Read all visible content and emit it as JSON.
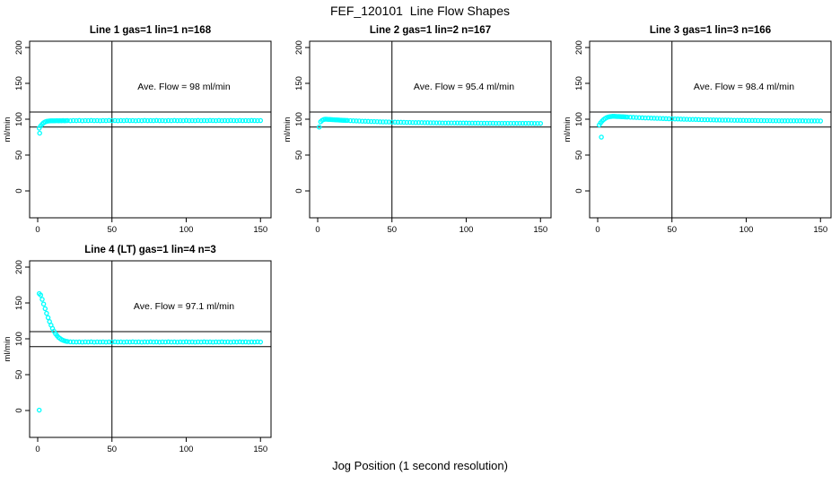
{
  "figure": {
    "title": "FEF_120101  Line Flow Shapes",
    "xlabel": "Jog Position (1 second resolution)",
    "background_color": "#ffffff",
    "point_color": "#00ffff",
    "axis_color": "#000000"
  },
  "chart_data": [
    {
      "type": "scatter",
      "name": "subplot-line-1",
      "title": "Line 1 gas=1 lin=1 n=168",
      "annotation": "Ave. Flow =  98  ml/min",
      "ylabel": "ml/min",
      "xticks": [
        0,
        50,
        100,
        150
      ],
      "yticks": [
        0,
        50,
        100,
        150,
        200
      ],
      "xlim": [
        -5,
        158
      ],
      "ylim": [
        -37,
        209
      ],
      "hlines": [
        110,
        89
      ],
      "vlines": [
        50
      ],
      "marker": "open-circle",
      "points": [
        [
          1,
          87.5
        ],
        [
          2,
          90.5
        ],
        [
          3,
          93.0
        ],
        [
          4,
          95.0
        ],
        [
          5,
          96.3
        ],
        [
          6,
          97.0
        ],
        [
          7,
          97.4
        ],
        [
          8,
          97.6
        ],
        [
          9,
          97.7
        ],
        [
          10,
          97.8
        ],
        [
          11,
          97.7
        ],
        [
          12,
          97.9
        ],
        [
          13,
          98.0
        ],
        [
          14,
          97.8
        ],
        [
          15,
          98.0
        ],
        [
          16,
          97.9
        ],
        [
          17,
          98.1
        ],
        [
          18,
          97.9
        ],
        [
          19,
          98.0
        ],
        [
          20,
          98.1
        ],
        [
          22,
          97.9
        ],
        [
          24,
          98.1
        ],
        [
          26,
          98.0
        ],
        [
          28,
          98.2
        ],
        [
          30,
          97.9
        ],
        [
          32,
          98.1
        ],
        [
          34,
          98.0
        ],
        [
          36,
          98.2
        ],
        [
          38,
          98.0
        ],
        [
          40,
          98.1
        ],
        [
          42,
          97.9
        ],
        [
          44,
          98.1
        ],
        [
          46,
          98.0
        ],
        [
          48,
          98.2
        ],
        [
          50,
          98.0
        ],
        [
          52,
          98.1
        ],
        [
          54,
          97.9
        ],
        [
          56,
          98.1
        ],
        [
          58,
          98.0
        ],
        [
          60,
          98.2
        ],
        [
          62,
          98.0
        ],
        [
          64,
          98.1
        ],
        [
          66,
          97.9
        ],
        [
          68,
          98.1
        ],
        [
          70,
          98.0
        ],
        [
          72,
          98.2
        ],
        [
          74,
          98.0
        ],
        [
          76,
          98.1
        ],
        [
          78,
          98.0
        ],
        [
          80,
          98.2
        ],
        [
          82,
          98.0
        ],
        [
          84,
          98.1
        ],
        [
          86,
          97.9
        ],
        [
          88,
          98.1
        ],
        [
          90,
          98.0
        ],
        [
          92,
          98.2
        ],
        [
          94,
          98.0
        ],
        [
          96,
          98.1
        ],
        [
          98,
          98.0
        ],
        [
          100,
          98.2
        ],
        [
          102,
          98.0
        ],
        [
          104,
          98.1
        ],
        [
          106,
          98.0
        ],
        [
          108,
          98.2
        ],
        [
          110,
          98.0
        ],
        [
          112,
          98.1
        ],
        [
          114,
          98.0
        ],
        [
          116,
          98.2
        ],
        [
          118,
          98.1
        ],
        [
          120,
          98.0
        ],
        [
          122,
          98.2
        ],
        [
          124,
          98.0
        ],
        [
          126,
          98.1
        ],
        [
          128,
          98.0
        ],
        [
          130,
          98.2
        ],
        [
          132,
          98.1
        ],
        [
          134,
          98.0
        ],
        [
          136,
          98.2
        ],
        [
          138,
          98.0
        ],
        [
          140,
          98.1
        ],
        [
          142,
          98.0
        ],
        [
          144,
          98.2
        ],
        [
          146,
          98.1
        ],
        [
          148,
          98.0
        ],
        [
          150,
          98.1
        ]
      ],
      "outliers": [
        [
          1.3,
          80.5
        ]
      ]
    },
    {
      "type": "scatter",
      "name": "subplot-line-2",
      "title": "Line 2 gas=1 lin=2 n=167",
      "annotation": "Ave. Flow =  95.4  ml/min",
      "ylabel": "ml/min",
      "xticks": [
        0,
        50,
        100,
        150
      ],
      "yticks": [
        0,
        50,
        100,
        150,
        200
      ],
      "xlim": [
        -5,
        158
      ],
      "ylim": [
        -37,
        209
      ],
      "hlines": [
        110,
        89
      ],
      "vlines": [
        50
      ],
      "marker": "open-circle",
      "points": [
        [
          1,
          89.0
        ],
        [
          2,
          96.5
        ],
        [
          3,
          98.5
        ],
        [
          4,
          99.5
        ],
        [
          5,
          100.0
        ],
        [
          6,
          100.0
        ],
        [
          7,
          99.8
        ],
        [
          8,
          99.7
        ],
        [
          9,
          99.5
        ],
        [
          10,
          99.4
        ],
        [
          11,
          99.2
        ],
        [
          12,
          99.1
        ],
        [
          13,
          99.0
        ],
        [
          14,
          98.9
        ],
        [
          15,
          98.7
        ],
        [
          16,
          98.6
        ],
        [
          17,
          98.5
        ],
        [
          18,
          98.4
        ],
        [
          19,
          98.3
        ],
        [
          20,
          98.2
        ],
        [
          22,
          98.0
        ],
        [
          24,
          97.8
        ],
        [
          26,
          97.6
        ],
        [
          28,
          97.5
        ],
        [
          30,
          97.3
        ],
        [
          32,
          97.1
        ],
        [
          34,
          97.0
        ],
        [
          36,
          96.8
        ],
        [
          38,
          96.7
        ],
        [
          40,
          96.6
        ],
        [
          42,
          96.4
        ],
        [
          44,
          96.3
        ],
        [
          46,
          96.2
        ],
        [
          48,
          96.1
        ],
        [
          50,
          96.0
        ],
        [
          52,
          95.9
        ],
        [
          54,
          95.8
        ],
        [
          56,
          95.7
        ],
        [
          58,
          95.6
        ],
        [
          60,
          95.5
        ],
        [
          62,
          95.5
        ],
        [
          64,
          95.4
        ],
        [
          66,
          95.3
        ],
        [
          68,
          95.3
        ],
        [
          70,
          95.2
        ],
        [
          72,
          95.1
        ],
        [
          74,
          95.1
        ],
        [
          76,
          95.0
        ],
        [
          78,
          95.0
        ],
        [
          80,
          94.9
        ],
        [
          82,
          94.9
        ],
        [
          84,
          94.8
        ],
        [
          86,
          94.8
        ],
        [
          88,
          94.8
        ],
        [
          90,
          94.7
        ],
        [
          92,
          94.7
        ],
        [
          94,
          94.7
        ],
        [
          96,
          94.6
        ],
        [
          98,
          94.6
        ],
        [
          100,
          94.6
        ],
        [
          102,
          94.5
        ],
        [
          104,
          94.5
        ],
        [
          106,
          94.5
        ],
        [
          108,
          94.5
        ],
        [
          110,
          94.4
        ],
        [
          112,
          94.4
        ],
        [
          114,
          94.4
        ],
        [
          116,
          94.4
        ],
        [
          118,
          94.4
        ],
        [
          120,
          94.3
        ],
        [
          122,
          94.3
        ],
        [
          124,
          94.3
        ],
        [
          126,
          94.3
        ],
        [
          128,
          94.3
        ],
        [
          130,
          94.3
        ],
        [
          132,
          94.2
        ],
        [
          134,
          94.2
        ],
        [
          136,
          94.2
        ],
        [
          138,
          94.2
        ],
        [
          140,
          94.2
        ],
        [
          142,
          94.2
        ],
        [
          144,
          94.2
        ],
        [
          146,
          94.1
        ],
        [
          148,
          94.1
        ],
        [
          150,
          94.1
        ]
      ],
      "outliers": []
    },
    {
      "type": "scatter",
      "name": "subplot-line-3",
      "title": "Line 3 gas=1 lin=3 n=166",
      "annotation": "Ave. Flow =  98.4  ml/min",
      "ylabel": "ml/min",
      "xticks": [
        0,
        50,
        100,
        150
      ],
      "yticks": [
        0,
        50,
        100,
        150,
        200
      ],
      "xlim": [
        -5,
        158
      ],
      "ylim": [
        -37,
        209
      ],
      "hlines": [
        110,
        89
      ],
      "vlines": [
        50
      ],
      "marker": "open-circle",
      "points": [
        [
          1,
          92.0
        ],
        [
          2,
          95.0
        ],
        [
          3,
          97.5
        ],
        [
          4,
          99.5
        ],
        [
          5,
          101.0
        ],
        [
          6,
          102.2
        ],
        [
          7,
          103.0
        ],
        [
          8,
          103.5
        ],
        [
          9,
          103.8
        ],
        [
          10,
          104.0
        ],
        [
          11,
          104.0
        ],
        [
          12,
          103.9
        ],
        [
          13,
          103.8
        ],
        [
          14,
          103.7
        ],
        [
          15,
          103.6
        ],
        [
          16,
          103.5
        ],
        [
          17,
          103.4
        ],
        [
          18,
          103.2
        ],
        [
          19,
          103.1
        ],
        [
          20,
          103.0
        ],
        [
          22,
          102.8
        ],
        [
          24,
          102.6
        ],
        [
          26,
          102.4
        ],
        [
          28,
          102.2
        ],
        [
          30,
          102.0
        ],
        [
          32,
          101.8
        ],
        [
          34,
          101.7
        ],
        [
          36,
          101.5
        ],
        [
          38,
          101.4
        ],
        [
          40,
          101.2
        ],
        [
          42,
          101.1
        ],
        [
          44,
          100.9
        ],
        [
          46,
          100.8
        ],
        [
          48,
          100.6
        ],
        [
          50,
          100.5
        ],
        [
          52,
          100.4
        ],
        [
          54,
          100.2
        ],
        [
          56,
          100.1
        ],
        [
          58,
          100.0
        ],
        [
          60,
          99.9
        ],
        [
          62,
          99.8
        ],
        [
          64,
          99.7
        ],
        [
          66,
          99.6
        ],
        [
          68,
          99.5
        ],
        [
          70,
          99.4
        ],
        [
          72,
          99.3
        ],
        [
          74,
          99.2
        ],
        [
          76,
          99.1
        ],
        [
          78,
          99.0
        ],
        [
          80,
          98.9
        ],
        [
          82,
          98.9
        ],
        [
          84,
          98.8
        ],
        [
          86,
          98.7
        ],
        [
          88,
          98.7
        ],
        [
          90,
          98.6
        ],
        [
          92,
          98.5
        ],
        [
          94,
          98.5
        ],
        [
          96,
          98.4
        ],
        [
          98,
          98.4
        ],
        [
          100,
          98.3
        ],
        [
          102,
          98.3
        ],
        [
          104,
          98.2
        ],
        [
          106,
          98.2
        ],
        [
          108,
          98.1
        ],
        [
          110,
          98.1
        ],
        [
          112,
          98.0
        ],
        [
          114,
          98.0
        ],
        [
          116,
          98.0
        ],
        [
          118,
          97.9
        ],
        [
          120,
          97.9
        ],
        [
          122,
          97.9
        ],
        [
          124,
          97.8
        ],
        [
          126,
          97.8
        ],
        [
          128,
          97.8
        ],
        [
          130,
          97.8
        ],
        [
          132,
          97.7
        ],
        [
          134,
          97.7
        ],
        [
          136,
          97.7
        ],
        [
          138,
          97.7
        ],
        [
          140,
          97.6
        ],
        [
          142,
          97.6
        ],
        [
          144,
          97.6
        ],
        [
          146,
          97.6
        ],
        [
          148,
          97.6
        ],
        [
          150,
          97.5
        ]
      ],
      "outliers": [
        [
          2.5,
          75.0
        ]
      ]
    },
    {
      "type": "scatter",
      "name": "subplot-line-4",
      "title": "Line 4 (LT) gas=1 lin=4 n=3",
      "annotation": "Ave. Flow =  97.1  ml/min",
      "ylabel": "ml/min",
      "xticks": [
        0,
        50,
        100,
        150
      ],
      "yticks": [
        0,
        50,
        100,
        150,
        200
      ],
      "xlim": [
        -5,
        158
      ],
      "ylim": [
        -37,
        209
      ],
      "hlines": [
        110,
        89
      ],
      "vlines": [
        50
      ],
      "marker": "open-circle",
      "points": [
        [
          1,
          163.0
        ],
        [
          2,
          161.0
        ],
        [
          3,
          155.0
        ],
        [
          4,
          148.5
        ],
        [
          5,
          142.0
        ],
        [
          6,
          135.5
        ],
        [
          7,
          129.5
        ],
        [
          8,
          124.0
        ],
        [
          9,
          119.0
        ],
        [
          10,
          114.5
        ],
        [
          11,
          110.5
        ],
        [
          12,
          107.0
        ],
        [
          13,
          104.5
        ],
        [
          14,
          102.0
        ],
        [
          15,
          100.5
        ],
        [
          16,
          99.0
        ],
        [
          17,
          98.0
        ],
        [
          18,
          97.2
        ],
        [
          19,
          96.6
        ],
        [
          20,
          96.2
        ],
        [
          22,
          95.8
        ],
        [
          24,
          95.6
        ],
        [
          26,
          95.5
        ],
        [
          28,
          95.6
        ],
        [
          30,
          95.4
        ],
        [
          32,
          95.6
        ],
        [
          34,
          95.5
        ],
        [
          36,
          95.7
        ],
        [
          38,
          95.4
        ],
        [
          40,
          95.6
        ],
        [
          42,
          95.5
        ],
        [
          44,
          95.6
        ],
        [
          46,
          95.4
        ],
        [
          48,
          95.6
        ],
        [
          50,
          95.5
        ],
        [
          52,
          95.7
        ],
        [
          54,
          95.5
        ],
        [
          56,
          95.6
        ],
        [
          58,
          95.4
        ],
        [
          60,
          95.6
        ],
        [
          62,
          95.5
        ],
        [
          64,
          95.7
        ],
        [
          66,
          95.5
        ],
        [
          68,
          95.6
        ],
        [
          70,
          95.4
        ],
        [
          72,
          95.6
        ],
        [
          74,
          95.5
        ],
        [
          76,
          95.7
        ],
        [
          78,
          95.5
        ],
        [
          80,
          95.6
        ],
        [
          82,
          95.4
        ],
        [
          84,
          95.6
        ],
        [
          86,
          95.5
        ],
        [
          88,
          95.7
        ],
        [
          90,
          95.5
        ],
        [
          92,
          95.6
        ],
        [
          94,
          95.4
        ],
        [
          96,
          95.6
        ],
        [
          98,
          95.5
        ],
        [
          100,
          95.7
        ],
        [
          102,
          95.5
        ],
        [
          104,
          95.6
        ],
        [
          106,
          95.4
        ],
        [
          108,
          95.6
        ],
        [
          110,
          95.5
        ],
        [
          112,
          95.7
        ],
        [
          114,
          95.5
        ],
        [
          116,
          95.6
        ],
        [
          118,
          95.4
        ],
        [
          120,
          95.6
        ],
        [
          122,
          95.5
        ],
        [
          124,
          95.7
        ],
        [
          126,
          95.5
        ],
        [
          128,
          95.6
        ],
        [
          130,
          95.4
        ],
        [
          132,
          95.6
        ],
        [
          134,
          95.5
        ],
        [
          136,
          95.7
        ],
        [
          138,
          95.5
        ],
        [
          140,
          95.6
        ],
        [
          142,
          95.4
        ],
        [
          144,
          95.6
        ],
        [
          146,
          95.5
        ],
        [
          148,
          95.7
        ],
        [
          150,
          95.5
        ]
      ],
      "outliers": [
        [
          1.0,
          0.5
        ]
      ]
    }
  ]
}
